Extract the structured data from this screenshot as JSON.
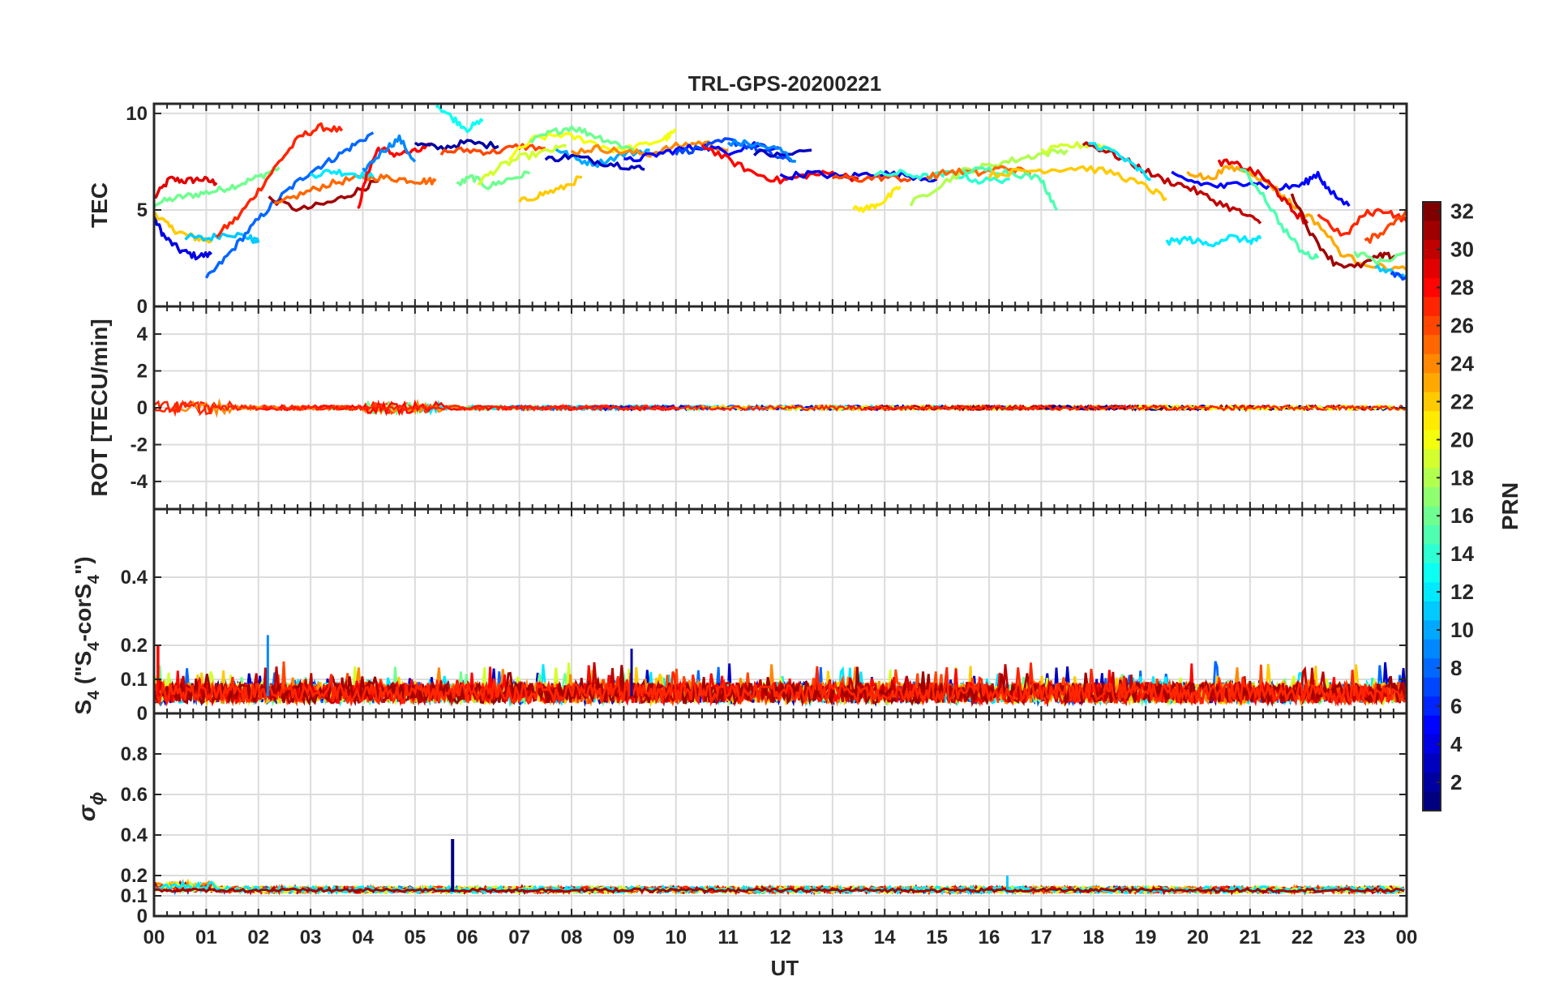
{
  "chart_data": {
    "type": "line",
    "title": "TRL-GPS-20200221",
    "xlabel": "UT",
    "x_range_hours": [
      0,
      24
    ],
    "x_tick_labels": [
      "00",
      "01",
      "02",
      "03",
      "04",
      "05",
      "06",
      "07",
      "08",
      "09",
      "10",
      "11",
      "12",
      "13",
      "14",
      "15",
      "16",
      "17",
      "18",
      "19",
      "20",
      "21",
      "22",
      "23",
      "00"
    ],
    "grid": true,
    "colorbar": {
      "label": "PRN",
      "range": [
        1,
        32
      ],
      "tick_labels": [
        "2",
        "4",
        "6",
        "8",
        "10",
        "12",
        "14",
        "16",
        "18",
        "20",
        "22",
        "24",
        "26",
        "28",
        "30",
        "32"
      ],
      "colormap": "jet",
      "colors": [
        "#00008f",
        "#0000ff",
        "#0080ff",
        "#00ffff",
        "#80ff80",
        "#ffff00",
        "#ff8000",
        "#ff0000",
        "#800000"
      ]
    },
    "panels": [
      {
        "ylabel": "TEC",
        "ylim": [
          0,
          10.5
        ],
        "yticks": [
          "0",
          "5",
          "10"
        ],
        "series": [
          {
            "prn": 29,
            "x": [
              0,
              0.3,
              0.6,
              0.9,
              1.2
            ],
            "y": [
              5.6,
              6.6,
              6.5,
              6.6,
              6.4
            ]
          },
          {
            "prn": 16,
            "x": [
              0,
              0.4,
              0.8,
              1.2,
              1.6,
              2.0,
              2.4
            ],
            "y": [
              5.3,
              5.6,
              5.8,
              6.0,
              6.3,
              6.7,
              7.2
            ]
          },
          {
            "prn": 4,
            "x": [
              0,
              0.2,
              0.5,
              0.8,
              1.1
            ],
            "y": [
              4.6,
              3.6,
              2.9,
              2.6,
              2.7
            ]
          },
          {
            "prn": 22,
            "x": [
              0,
              0.3,
              0.6,
              0.9,
              1.1
            ],
            "y": [
              4.9,
              4.1,
              3.7,
              3.5,
              3.4
            ]
          },
          {
            "prn": 11,
            "x": [
              0.6,
              1.0,
              1.4,
              1.8,
              2.0
            ],
            "y": [
              3.6,
              3.5,
              3.8,
              3.6,
              3.3
            ]
          },
          {
            "prn": 27,
            "x": [
              1.2,
              1.6,
              2.0,
              2.4,
              2.8,
              3.2,
              3.6
            ],
            "y": [
              3.7,
              4.6,
              6.0,
              7.5,
              8.8,
              9.3,
              9.1
            ]
          },
          {
            "prn": 8,
            "x": [
              1.0,
              1.4,
              1.8,
              2.2,
              2.6,
              3.0,
              3.4,
              3.8,
              4.2
            ],
            "y": [
              1.4,
              2.6,
              3.9,
              5.1,
              6.1,
              7.0,
              7.6,
              8.3,
              9.0
            ]
          },
          {
            "prn": 31,
            "x": [
              2.2,
              2.8,
              3.4,
              3.9,
              4.3
            ],
            "y": [
              5.6,
              5.0,
              5.4,
              6.0,
              6.5
            ]
          },
          {
            "prn": 25,
            "x": [
              2.3,
              2.8,
              3.3,
              3.8,
              4.3,
              4.7,
              5.1,
              5.4
            ],
            "y": [
              5.2,
              5.8,
              6.3,
              6.6,
              6.7,
              6.6,
              6.5,
              6.5
            ]
          },
          {
            "prn": 12,
            "x": [
              3.0,
              3.4,
              3.8,
              4.2
            ],
            "y": [
              6.8,
              7.0,
              6.9,
              6.7
            ]
          },
          {
            "prn": 28,
            "x": [
              3.9,
              4.1,
              4.3,
              4.6,
              5.0,
              5.3
            ],
            "y": [
              5.0,
              7.0,
              8.2,
              7.9,
              8.0,
              8.3
            ]
          },
          {
            "prn": 9,
            "x": [
              4.0,
              4.4,
              4.7,
              5.0
            ],
            "y": [
              7.0,
              8.1,
              8.7,
              7.5
            ]
          },
          {
            "prn": 2,
            "x": [
              5.0,
              5.5,
              6.0,
              6.6
            ],
            "y": [
              8.4,
              8.2,
              8.5,
              8.3
            ]
          },
          {
            "prn": 13,
            "x": [
              5.4,
              5.7,
              6.0,
              6.3
            ],
            "y": [
              10.5,
              9.8,
              9.2,
              9.6
            ]
          },
          {
            "prn": 26,
            "x": [
              5.5,
              6.0,
              6.5,
              7.0,
              7.5
            ],
            "y": [
              8.0,
              8.1,
              8.0,
              8.3,
              8.2
            ]
          },
          {
            "prn": 16,
            "x": [
              5.8,
              6.1,
              6.4,
              6.8,
              7.2
            ],
            "y": [
              6.3,
              6.7,
              6.2,
              6.6,
              6.9
            ]
          },
          {
            "prn": 19,
            "x": [
              6.2,
              6.6,
              7.0,
              7.5,
              7.9
            ],
            "y": [
              6.4,
              7.2,
              7.7,
              8.0,
              8.3
            ]
          },
          {
            "prn": 20,
            "x": [
              6.8,
              7.3,
              7.8,
              8.3,
              8.8,
              9.3,
              9.8,
              10.0
            ],
            "y": [
              7.7,
              8.7,
              8.9,
              8.6,
              8.1,
              8.3,
              8.7,
              9.1
            ]
          },
          {
            "prn": 22,
            "x": [
              7.0,
              7.4,
              7.8,
              8.2
            ],
            "y": [
              5.4,
              5.8,
              6.1,
              6.7
            ]
          },
          {
            "prn": 16,
            "x": [
              7.2,
              7.6,
              8.0,
              8.4,
              8.8,
              9.2
            ],
            "y": [
              8.5,
              9.0,
              9.3,
              8.9,
              8.5,
              8.1
            ]
          },
          {
            "prn": 10,
            "x": [
              7.7,
              8.1,
              8.5,
              9.0,
              9.5
            ],
            "y": [
              8.2,
              7.6,
              7.4,
              7.9,
              8.1
            ]
          },
          {
            "prn": 3,
            "x": [
              7.5,
              8.0,
              8.5,
              9.0,
              9.4
            ],
            "y": [
              7.6,
              7.8,
              7.5,
              7.3,
              7.1
            ]
          },
          {
            "prn": 24,
            "x": [
              8.0,
              8.5,
              9.0,
              9.5,
              10.0,
              10.5,
              11.0
            ],
            "y": [
              8.0,
              8.2,
              8.0,
              7.9,
              8.3,
              8.5,
              8.1
            ]
          },
          {
            "prn": 5,
            "x": [
              9.0,
              9.5,
              10.0,
              10.5,
              11.0,
              11.5,
              12.0
            ],
            "y": [
              7.5,
              7.8,
              8.1,
              8.3,
              8.0,
              8.4,
              8.2
            ]
          },
          {
            "prn": 7,
            "x": [
              10.0,
              10.5,
              11.0,
              11.4,
              11.8,
              12.2
            ],
            "y": [
              8.0,
              8.2,
              8.6,
              8.3,
              7.9,
              7.5
            ]
          },
          {
            "prn": 28,
            "x": [
              10.5,
              11.0,
              11.5,
              12.0,
              12.5,
              13.0,
              13.5
            ],
            "y": [
              8.4,
              7.6,
              6.9,
              6.5,
              6.8,
              6.9,
              6.6
            ]
          },
          {
            "prn": 3,
            "x": [
              11.5,
              12.0,
              12.6
            ],
            "y": [
              8.0,
              7.8,
              8.1
            ]
          },
          {
            "prn": 9,
            "x": [
              11.0,
              11.5,
              12.0,
              12.3
            ],
            "y": [
              8.5,
              8.4,
              8.1,
              7.5
            ]
          },
          {
            "prn": 4,
            "x": [
              12.0,
              12.6,
              13.2,
              13.8,
              14.4,
              15.0
            ],
            "y": [
              6.7,
              6.9,
              6.7,
              6.9,
              6.8,
              6.6
            ]
          },
          {
            "prn": 21,
            "x": [
              13.4,
              13.7,
              14.0,
              14.3
            ],
            "y": [
              5.0,
              5.1,
              5.5,
              6.2
            ]
          },
          {
            "prn": 26,
            "x": [
              13.0,
              13.5,
              14.0,
              14.5
            ],
            "y": [
              6.7,
              6.6,
              6.7,
              6.6
            ]
          },
          {
            "prn": 14,
            "x": [
              13.8,
              14.3,
              14.8,
              15.3,
              15.8,
              16.4
            ],
            "y": [
              6.8,
              6.9,
              6.7,
              6.9,
              6.5,
              6.6
            ]
          },
          {
            "prn": 18,
            "x": [
              14.5,
              15.0,
              15.5,
              16.0,
              16.5,
              17.0,
              17.5
            ],
            "y": [
              5.3,
              6.2,
              7.0,
              7.3,
              7.6,
              7.9,
              8.1
            ]
          },
          {
            "prn": 25,
            "x": [
              14.8,
              15.3,
              15.8,
              16.3,
              16.8
            ],
            "y": [
              6.7,
              7.0,
              6.9,
              7.2,
              6.9
            ]
          },
          {
            "prn": 15,
            "x": [
              15.5,
              16.0,
              16.5,
              17.0,
              17.3
            ],
            "y": [
              7.0,
              7.1,
              6.9,
              6.6,
              5.0
            ]
          },
          {
            "prn": 22,
            "x": [
              16.0,
              16.6,
              17.2,
              17.8,
              18.4,
              19.0,
              19.4
            ],
            "y": [
              6.8,
              7.0,
              7.1,
              7.2,
              6.9,
              6.2,
              5.6
            ]
          },
          {
            "prn": 19,
            "x": [
              17.0,
              17.5,
              18.0,
              18.4
            ],
            "y": [
              8.0,
              8.3,
              8.4,
              8.1
            ]
          },
          {
            "prn": 30,
            "x": [
              17.8,
              18.3,
              18.8,
              19.3,
              19.8,
              20.3,
              20.8,
              21.2
            ],
            "y": [
              8.5,
              8.0,
              7.3,
              6.6,
              6.2,
              5.5,
              4.9,
              4.3
            ]
          },
          {
            "prn": 12,
            "x": [
              17.9,
              18.4,
              18.8,
              19.1
            ],
            "y": [
              8.5,
              8.0,
              7.2,
              6.6
            ]
          },
          {
            "prn": 12,
            "x": [
              19.4,
              19.8,
              20.2,
              20.6,
              21.0,
              21.2
            ],
            "y": [
              3.3,
              3.5,
              3.2,
              3.6,
              3.4,
              3.5
            ]
          },
          {
            "prn": 5,
            "x": [
              19.5,
              20.0,
              20.5,
              21.0,
              21.5,
              22.0,
              22.3,
              22.5,
              22.9
            ],
            "y": [
              6.8,
              6.4,
              6.2,
              6.5,
              6.1,
              6.3,
              6.9,
              6.0,
              5.2
            ]
          },
          {
            "prn": 23,
            "x": [
              19.8,
              20.2,
              20.6,
              21.0,
              21.4,
              21.8,
              22.3,
              22.8,
              23.4,
              24.0
            ],
            "y": [
              7.0,
              6.6,
              7.2,
              7.0,
              6.3,
              5.3,
              4.3,
              2.6,
              2.1,
              1.9
            ]
          },
          {
            "prn": 29,
            "x": [
              20.4,
              20.8,
              21.2,
              21.5,
              21.8,
              22.1
            ],
            "y": [
              7.5,
              7.3,
              6.8,
              6.0,
              5.0,
              4.3
            ]
          },
          {
            "prn": 15,
            "x": [
              20.8,
              21.2,
              21.6,
              22.0,
              22.3
            ],
            "y": [
              7.2,
              6.0,
              4.2,
              2.8,
              2.5
            ]
          },
          {
            "prn": 31,
            "x": [
              21.8,
              22.2,
              22.6,
              23.0,
              23.5,
              23.8
            ],
            "y": [
              5.9,
              3.6,
              2.3,
              2.0,
              2.6,
              2.6
            ]
          },
          {
            "prn": 27,
            "x": [
              22.3,
              22.8,
              23.2,
              23.6,
              24.0
            ],
            "y": [
              4.8,
              3.6,
              4.8,
              5.0,
              4.4
            ]
          },
          {
            "prn": 16,
            "x": [
              23.0,
              23.5,
              24.0
            ],
            "y": [
              2.8,
              2.3,
              2.8
            ]
          },
          {
            "prn": 26,
            "x": [
              23.2,
              23.6,
              24.0
            ],
            "y": [
              3.3,
              4.0,
              5.0
            ]
          },
          {
            "prn": 11,
            "x": [
              23.4,
              23.8,
              24.0
            ],
            "y": [
              2.0,
              1.7,
              1.6
            ]
          },
          {
            "prn": 7,
            "x": [
              23.7,
              24.0
            ],
            "y": [
              1.8,
              1.5
            ]
          }
        ]
      },
      {
        "ylabel": "ROT [TECU/min]",
        "ylim": [
          -5.5,
          5.5
        ],
        "yticks": [
          "-4",
          "-2",
          "0",
          "2",
          "4"
        ],
        "series": [
          {
            "prn": 27,
            "x": [
              0,
              2,
              4,
              6,
              8,
              10,
              12,
              14,
              16,
              18,
              20,
              22,
              24
            ],
            "y": [
              0,
              0,
              0,
              0,
              0,
              0,
              0,
              0,
              0,
              0,
              0,
              0,
              0
            ]
          }
        ]
      },
      {
        "ylabel_main": "S",
        "ylabel_sub": "4",
        "ylabel_tail": " (\"S",
        "ylabel_sub2": "4",
        "ylabel_tail2": "-corS",
        "ylabel_sub3": "4",
        "ylabel_tail3": "\")",
        "ylim": [
          0,
          0.6
        ],
        "yticks": [
          "0",
          "0.1",
          "0.2",
          "0.4"
        ],
        "series": [
          {
            "prn": 27,
            "x": [
              0,
              24
            ],
            "y": [
              0.05,
              0.05
            ]
          }
        ]
      },
      {
        "ylabel": "σ",
        "ylabel_sub": "ϕ",
        "ylim": [
          0,
          1.0
        ],
        "yticks": [
          "0",
          "0.1",
          "0.2",
          "0.4",
          "0.6",
          "0.8"
        ],
        "series": [
          {
            "prn": 1,
            "x": [
              5.7,
              5.72,
              5.74
            ],
            "y": [
              0.12,
              0.38,
              0.12
            ]
          }
        ]
      }
    ]
  }
}
